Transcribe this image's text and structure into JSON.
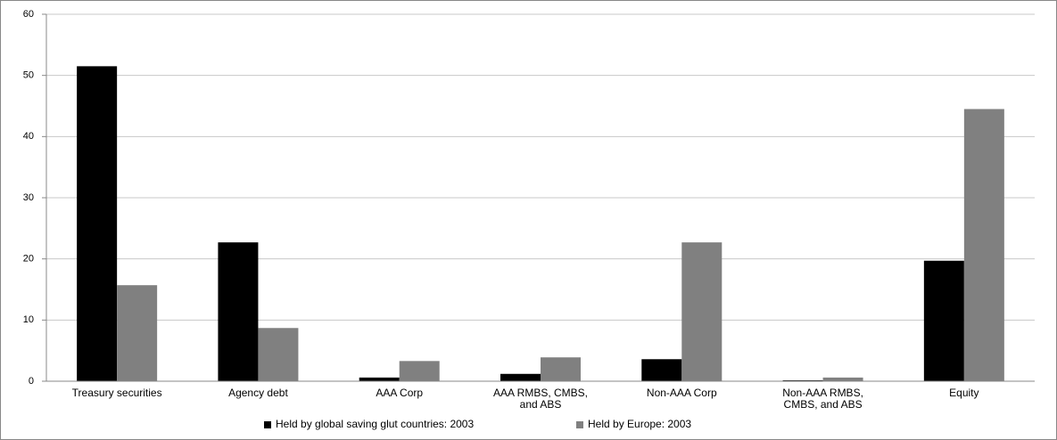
{
  "chart_data": {
    "type": "bar",
    "categories": [
      "Treasury securities",
      "Agency debt",
      "AAA Corp",
      "AAA RMBS, CMBS, and ABS",
      "Non-AAA Corp",
      "Non-AAA RMBS, CMBS, and ABS",
      "Equity"
    ],
    "series": [
      {
        "name": "Held by global saving glut countries: 2003",
        "color": "#000000",
        "values": [
          51.5,
          22.7,
          0.6,
          1.2,
          3.6,
          0.15,
          19.7
        ]
      },
      {
        "name": "Held by Europe: 2003",
        "color": "#808080",
        "values": [
          15.7,
          8.7,
          3.3,
          3.9,
          22.7,
          0.6,
          44.5
        ]
      }
    ],
    "ylim": [
      0,
      60
    ],
    "yticks": [
      0,
      10,
      20,
      30,
      40,
      50,
      60
    ],
    "grid": true,
    "legend": "bottom"
  }
}
